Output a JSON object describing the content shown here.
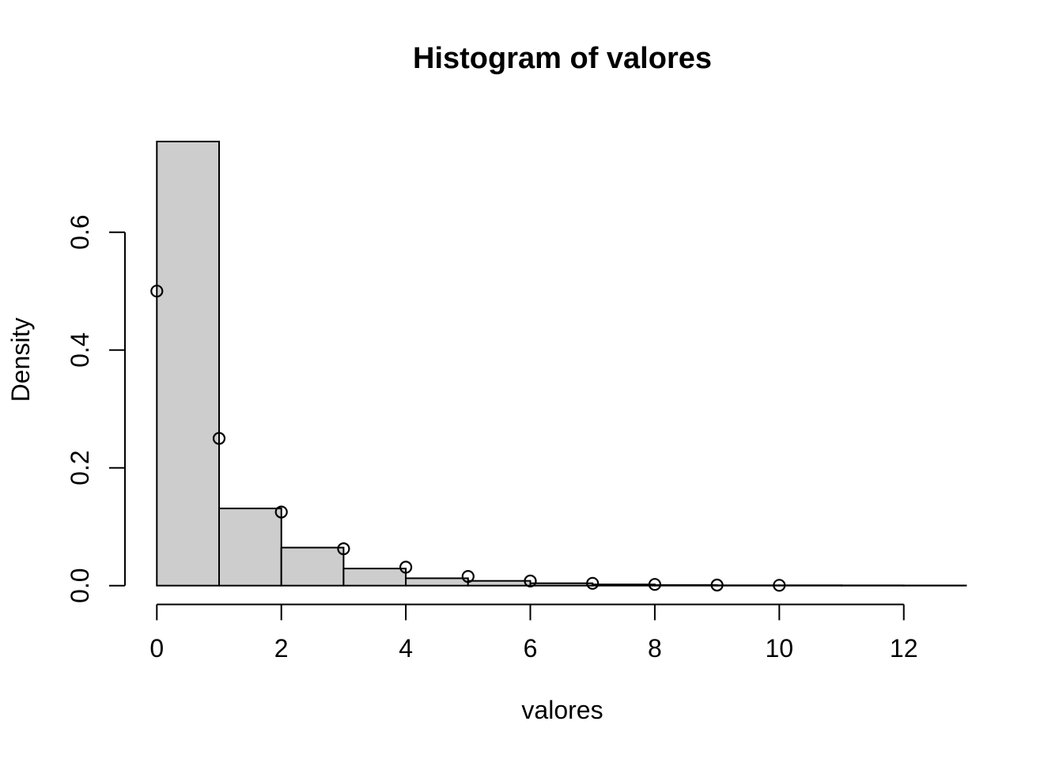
{
  "figure": {
    "title": "Histogram of valores",
    "x_axis_label": "valores",
    "y_axis_label": "Density",
    "background_color": "#ffffff",
    "bar_fill_color": "#cdcdcd",
    "bar_border_color": "#000000",
    "axis_color": "#000000",
    "point_color": "#000000"
  },
  "chart_data": {
    "type": "bar",
    "subtype": "histogram-with-scatter-overlay",
    "title": "Histogram of valores",
    "xlabel": "valores",
    "ylabel": "Density",
    "xlim": [
      0,
      13
    ],
    "ylim": [
      0,
      0.754
    ],
    "grid": false,
    "legend": null,
    "x_ticks": {
      "values": [
        0,
        2,
        4,
        6,
        8,
        10,
        12
      ],
      "labels": [
        "0",
        "2",
        "4",
        "6",
        "8",
        "10",
        "12"
      ]
    },
    "y_ticks": {
      "values": [
        0.0,
        0.2,
        0.4,
        0.6
      ],
      "labels": [
        "0.0",
        "0.2",
        "0.4",
        "0.6"
      ]
    },
    "histogram": {
      "bin_breaks": [
        0,
        1,
        2,
        3,
        4,
        5,
        6,
        7,
        8,
        9,
        10,
        11,
        12,
        13
      ],
      "bin_densities": [
        0.754,
        0.131,
        0.0645,
        0.029,
        0.0125,
        0.008,
        0.004,
        0.002,
        0.0009,
        0.0006,
        0.0005,
        0.0004,
        0.0003
      ]
    },
    "points": {
      "type": "scatter",
      "marker": "open-circle",
      "x": [
        0,
        1,
        2,
        3,
        4,
        5,
        6,
        7,
        8,
        9,
        10
      ],
      "y": [
        0.5,
        0.25,
        0.125,
        0.0625,
        0.03125,
        0.015625,
        0.0078125,
        0.00390625,
        0.001953125,
        0.0009765625,
        0.00048828125
      ]
    }
  }
}
